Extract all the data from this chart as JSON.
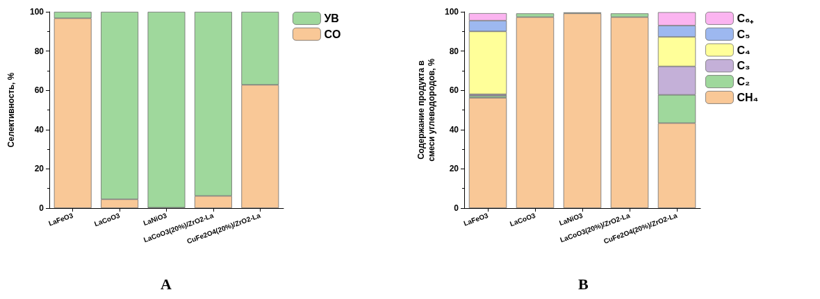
{
  "chart_data": [
    {
      "type": "bar",
      "title": "A",
      "ylabel": "Селективность, %",
      "categories": [
        "LaFeO3",
        "LaCoO3",
        "LaNiO3",
        "LaCoO3(20%)/ZrO2-La",
        "CuFe2O4(20%)/ZrO2-La"
      ],
      "series": [
        {
          "name": "CO",
          "color": "#f9c897",
          "values": [
            96.7,
            4.5,
            0.2,
            6.2,
            62.8
          ]
        },
        {
          "name": "УВ",
          "color": "#9fd89c",
          "values": [
            3.3,
            95.5,
            99.8,
            93.8,
            37.2
          ]
        }
      ],
      "stacked": true,
      "ylim": [
        0,
        100
      ],
      "yticks": [
        0,
        20,
        40,
        60,
        80,
        100
      ],
      "grid": false,
      "legend": "top right"
    },
    {
      "type": "bar",
      "title": "B",
      "ylabel": "Содержание продукта в\nсмеси углеводородов, %",
      "categories": [
        "LaFeO3",
        "LaCoO3",
        "LaNiO3",
        "LaCoO3(20%)/ZrO2-La",
        "CuFe2O4(20%)/ZrO2-La"
      ],
      "series": [
        {
          "name": "CH₄",
          "color": "#f9c897",
          "values": [
            56.2,
            97.3,
            99.2,
            97.3,
            43.3
          ]
        },
        {
          "name": "C₂",
          "color": "#9fd89c",
          "values": [
            1.0,
            1.9,
            0.5,
            1.9,
            14.4
          ]
        },
        {
          "name": "C₃",
          "color": "#c4b0d8",
          "values": [
            0.8,
            null,
            null,
            null,
            14.5
          ]
        },
        {
          "name": "C₄",
          "color": "#ffff99",
          "values": [
            32.0,
            null,
            null,
            null,
            15.0
          ]
        },
        {
          "name": "C₅",
          "color": "#9db8f0",
          "values": [
            5.5,
            null,
            null,
            null,
            5.8
          ]
        },
        {
          "name": "C₆₊",
          "color": "#fbb4f0",
          "values": [
            3.8,
            null,
            null,
            null,
            6.8
          ]
        }
      ],
      "stacked": true,
      "ylim": [
        0,
        100
      ],
      "yticks": [
        0,
        20,
        40,
        60,
        80,
        100
      ],
      "grid": false,
      "legend": "top right"
    }
  ]
}
